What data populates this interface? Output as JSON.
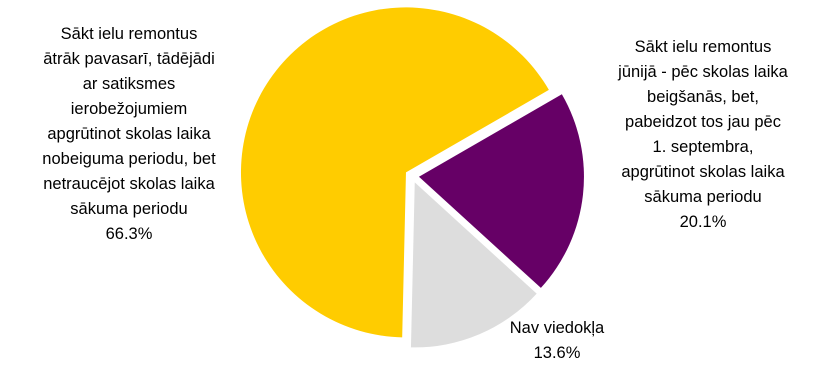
{
  "chart_data": {
    "type": "pie",
    "slices": [
      {
        "label_lines": [
          "Sākt ielu remontus",
          "ātrāk pavasarī, tādējādi",
          "ar satiksmes",
          "ierobežojumiem",
          "apgrūtinot skolas laika",
          "nobeiguma periodu, bet",
          "netraucējot skolas laika",
          "sākuma periodu"
        ],
        "value": 66.3,
        "value_label": "66.3%",
        "color": "#FFCC00"
      },
      {
        "label_lines": [
          "Sākt ielu remontus",
          "jūnijā - pēc skolas laika",
          "beigšanās, bet,",
          "pabeidzot tos jau pēc",
          "1. septembra,",
          "apgrūtinot skolas laika",
          "sākuma periodu"
        ],
        "value": 20.1,
        "value_label": "20.1%",
        "color": "#660066"
      },
      {
        "label_lines": [
          "Nav viedokļa"
        ],
        "value": 13.6,
        "value_label": "13.6%",
        "color": "#DDDDDD"
      }
    ],
    "exploded": true,
    "legend": "none",
    "grid": false
  }
}
